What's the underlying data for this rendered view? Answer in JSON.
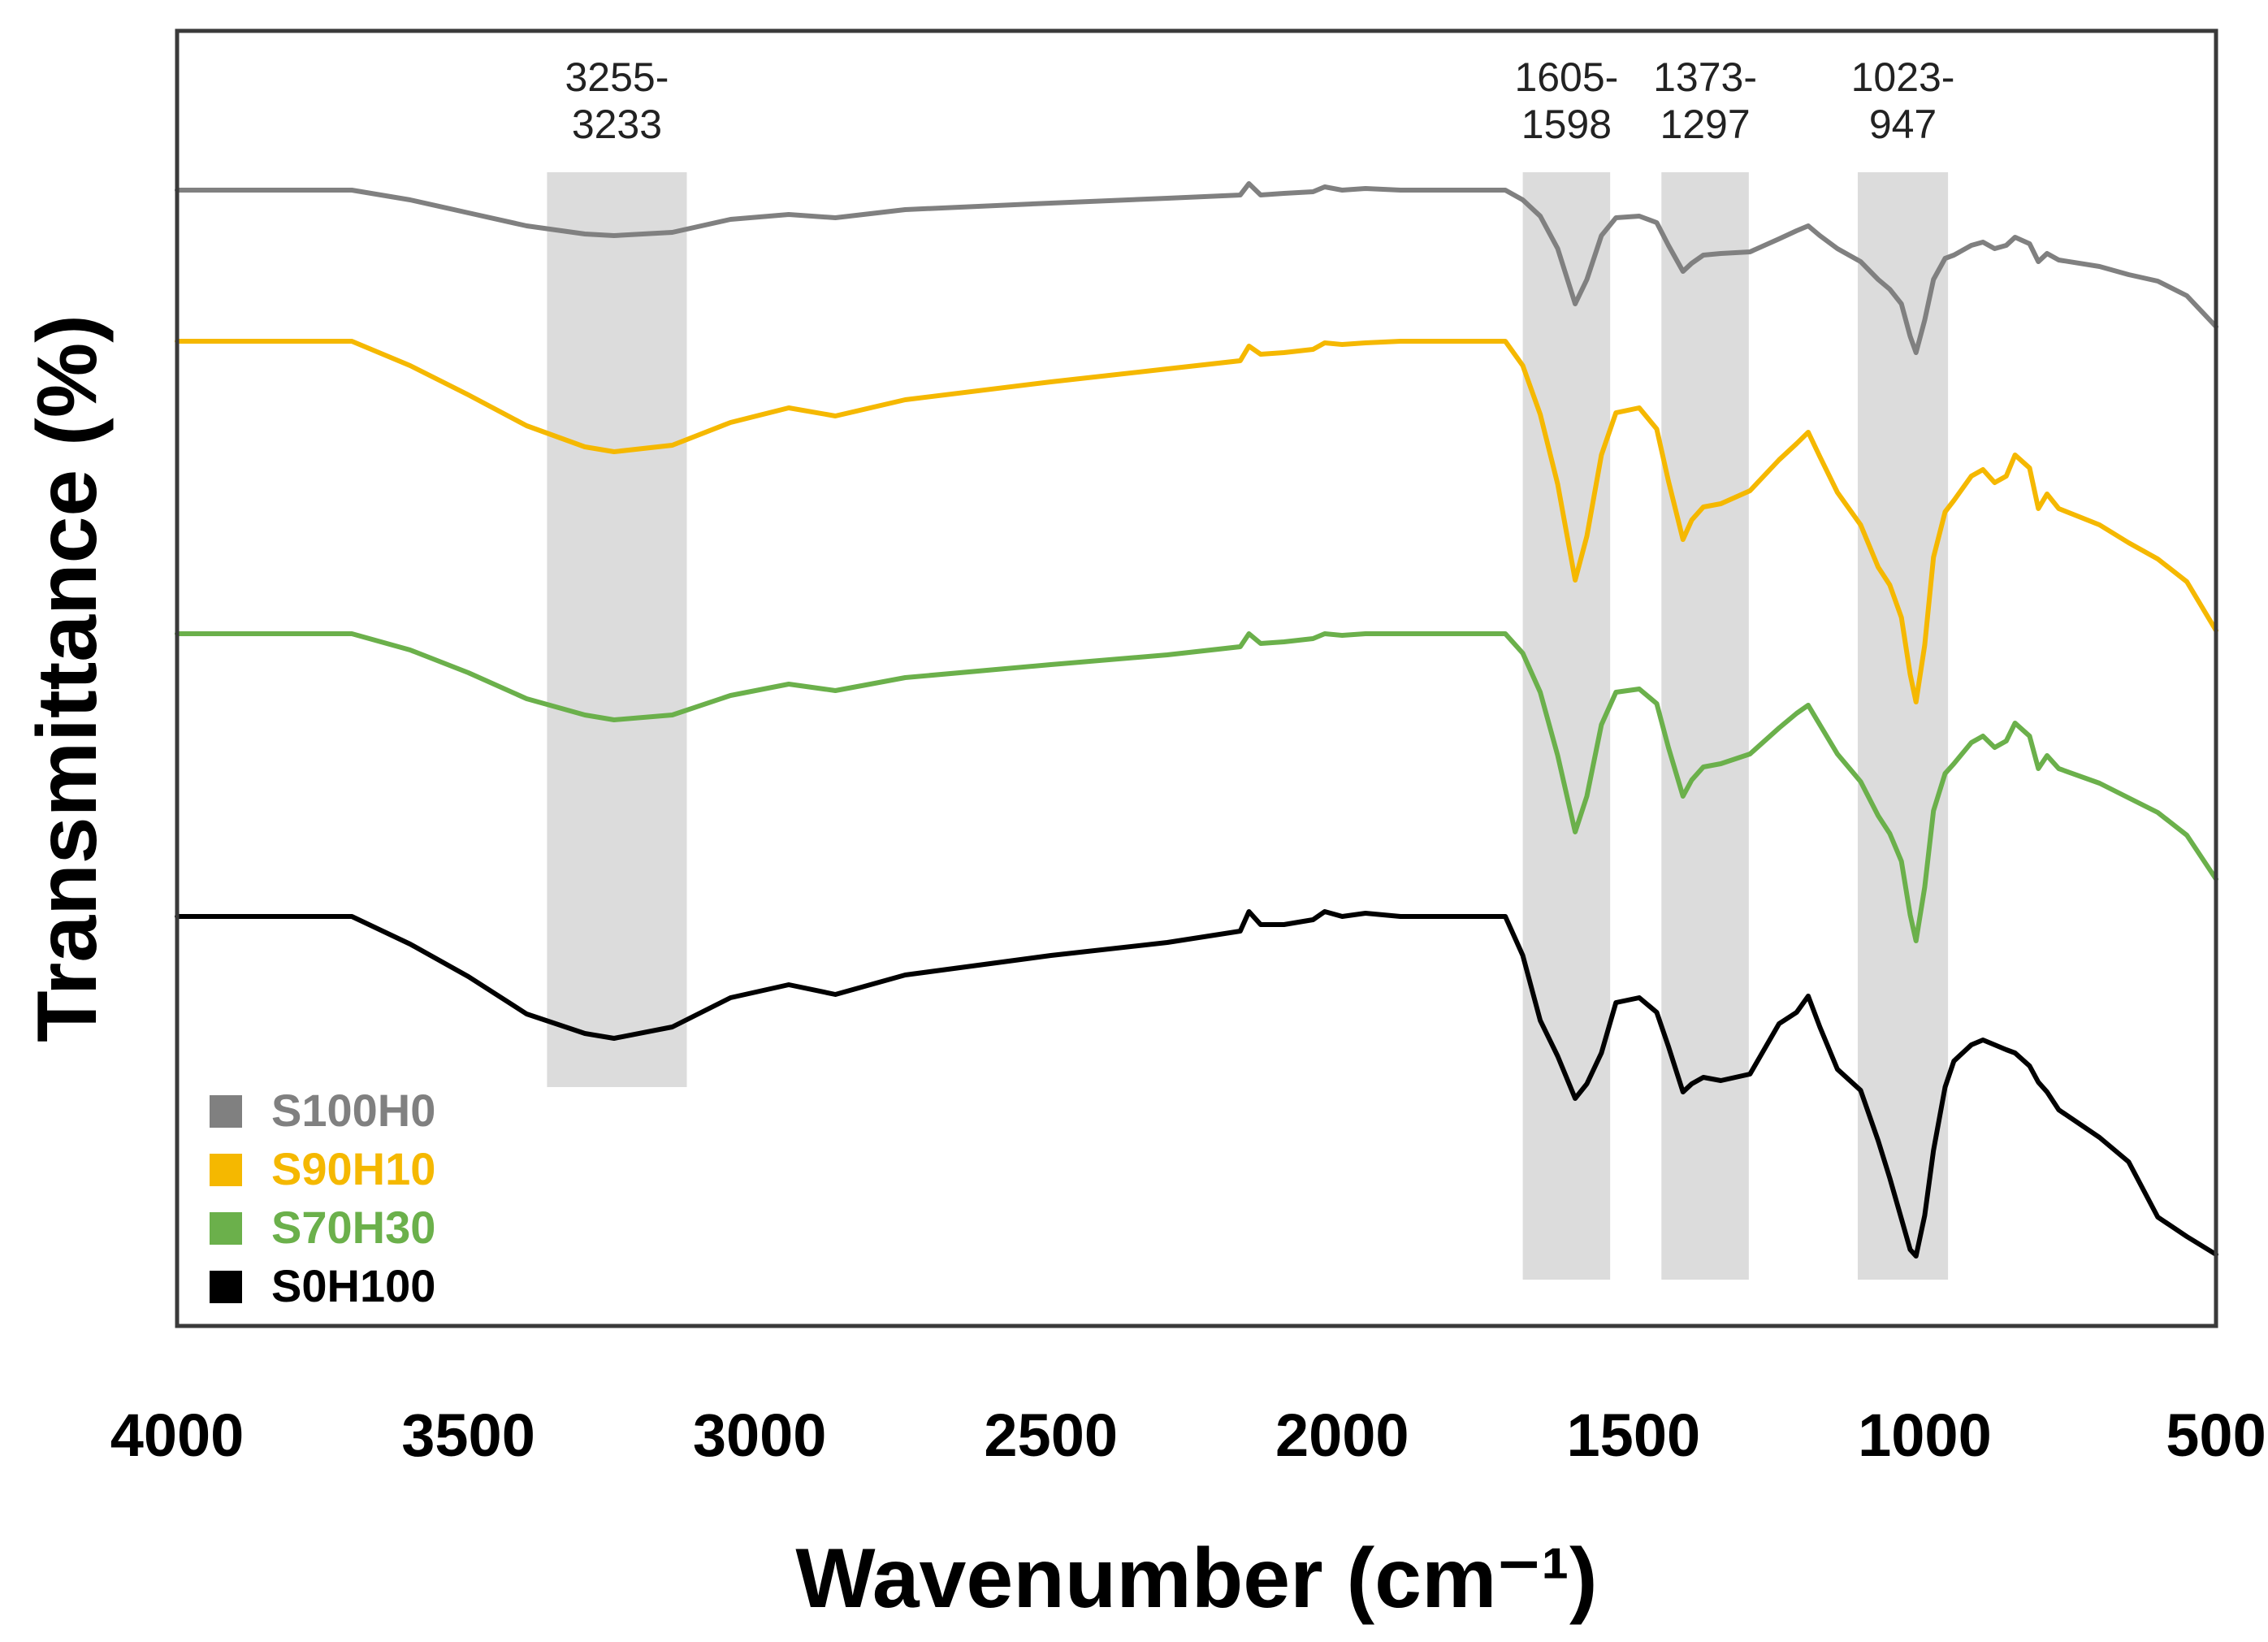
{
  "chart_data": {
    "type": "line",
    "xlabel": "Wavenumber (cm⁻¹)",
    "ylabel": "Transmittance (%)",
    "xlim": [
      4000,
      500
    ],
    "x_reversed": true,
    "x_ticks": [
      "4000",
      "3500",
      "3000",
      "2500",
      "2000",
      "1500",
      "1000",
      "500"
    ],
    "y_ticks_shown": false,
    "legend_position": "bottom-left",
    "bands": [
      {
        "from": 3365,
        "to": 3125,
        "label_lines": [
          "3255-",
          "3233"
        ]
      },
      {
        "from": 1690,
        "to": 1540,
        "label_lines": [
          "1605-",
          "1598"
        ]
      },
      {
        "from": 1452,
        "to": 1302,
        "label_lines": [
          "1373-",
          "1297"
        ]
      },
      {
        "from": 1115,
        "to": 960,
        "label_lines": [
          "1023-",
          "947"
        ]
      }
    ],
    "series": [
      {
        "name": "S100H0",
        "color": "#808080",
        "points": [
          [
            4000,
            0.0
          ],
          [
            3700,
            0.0
          ],
          [
            3600,
            -0.6
          ],
          [
            3500,
            -1.4
          ],
          [
            3400,
            -2.2
          ],
          [
            3300,
            -2.7
          ],
          [
            3250,
            -2.8
          ],
          [
            3150,
            -2.6
          ],
          [
            3050,
            -1.8
          ],
          [
            2950,
            -1.5
          ],
          [
            2870,
            -1.7
          ],
          [
            2750,
            -1.2
          ],
          [
            2500,
            -0.8
          ],
          [
            2300,
            -0.5
          ],
          [
            2175,
            -0.3
          ],
          [
            2160,
            0.4
          ],
          [
            2140,
            -0.3
          ],
          [
            2100,
            -0.2
          ],
          [
            2050,
            -0.1
          ],
          [
            2030,
            0.2
          ],
          [
            2000,
            0.0
          ],
          [
            1960,
            0.1
          ],
          [
            1900,
            0.0
          ],
          [
            1720,
            0.0
          ],
          [
            1690,
            -0.6
          ],
          [
            1660,
            -1.6
          ],
          [
            1630,
            -3.6
          ],
          [
            1600,
            -7.0
          ],
          [
            1580,
            -5.5
          ],
          [
            1555,
            -2.8
          ],
          [
            1530,
            -1.7
          ],
          [
            1490,
            -1.6
          ],
          [
            1460,
            -2.0
          ],
          [
            1440,
            -3.4
          ],
          [
            1415,
            -5.0
          ],
          [
            1400,
            -4.5
          ],
          [
            1380,
            -4.0
          ],
          [
            1350,
            -3.9
          ],
          [
            1300,
            -3.8
          ],
          [
            1250,
            -3.0
          ],
          [
            1220,
            -2.5
          ],
          [
            1200,
            -2.2
          ],
          [
            1180,
            -2.8
          ],
          [
            1150,
            -3.6
          ],
          [
            1110,
            -4.4
          ],
          [
            1080,
            -5.5
          ],
          [
            1060,
            -6.1
          ],
          [
            1040,
            -7.0
          ],
          [
            1025,
            -9.0
          ],
          [
            1015,
            -10.0
          ],
          [
            1000,
            -8.0
          ],
          [
            985,
            -5.5
          ],
          [
            965,
            -4.2
          ],
          [
            950,
            -4.0
          ],
          [
            920,
            -3.4
          ],
          [
            900,
            -3.2
          ],
          [
            880,
            -3.6
          ],
          [
            860,
            -3.4
          ],
          [
            845,
            -2.9
          ],
          [
            820,
            -3.3
          ],
          [
            805,
            -4.4
          ],
          [
            790,
            -3.9
          ],
          [
            770,
            -4.3
          ],
          [
            700,
            -4.7
          ],
          [
            650,
            -5.2
          ],
          [
            600,
            -5.6
          ],
          [
            550,
            -6.5
          ],
          [
            500,
            -8.4
          ]
        ]
      },
      {
        "name": "S90H10",
        "color": "#F5B800",
        "points": [
          [
            4000,
            0.0
          ],
          [
            3700,
            0.0
          ],
          [
            3600,
            -1.5
          ],
          [
            3500,
            -3.3
          ],
          [
            3400,
            -5.2
          ],
          [
            3300,
            -6.5
          ],
          [
            3250,
            -6.8
          ],
          [
            3150,
            -6.4
          ],
          [
            3050,
            -5.0
          ],
          [
            2950,
            -4.1
          ],
          [
            2870,
            -4.6
          ],
          [
            2750,
            -3.6
          ],
          [
            2500,
            -2.5
          ],
          [
            2300,
            -1.7
          ],
          [
            2175,
            -1.2
          ],
          [
            2160,
            -0.3
          ],
          [
            2140,
            -0.8
          ],
          [
            2100,
            -0.7
          ],
          [
            2050,
            -0.5
          ],
          [
            2030,
            -0.1
          ],
          [
            2000,
            -0.2
          ],
          [
            1960,
            -0.1
          ],
          [
            1900,
            0.0
          ],
          [
            1720,
            0.0
          ],
          [
            1690,
            -1.5
          ],
          [
            1660,
            -4.5
          ],
          [
            1630,
            -8.8
          ],
          [
            1600,
            -14.7
          ],
          [
            1580,
            -12.0
          ],
          [
            1555,
            -7.0
          ],
          [
            1530,
            -4.4
          ],
          [
            1490,
            -4.1
          ],
          [
            1460,
            -5.4
          ],
          [
            1440,
            -8.6
          ],
          [
            1415,
            -12.2
          ],
          [
            1400,
            -11.0
          ],
          [
            1380,
            -10.2
          ],
          [
            1350,
            -10.0
          ],
          [
            1300,
            -9.2
          ],
          [
            1250,
            -7.3
          ],
          [
            1220,
            -6.3
          ],
          [
            1200,
            -5.6
          ],
          [
            1180,
            -7.1
          ],
          [
            1150,
            -9.3
          ],
          [
            1110,
            -11.3
          ],
          [
            1080,
            -13.9
          ],
          [
            1060,
            -15.0
          ],
          [
            1040,
            -17.0
          ],
          [
            1025,
            -20.5
          ],
          [
            1015,
            -22.2
          ],
          [
            1000,
            -18.7
          ],
          [
            985,
            -13.3
          ],
          [
            965,
            -10.5
          ],
          [
            950,
            -9.8
          ],
          [
            920,
            -8.3
          ],
          [
            900,
            -7.9
          ],
          [
            880,
            -8.7
          ],
          [
            860,
            -8.3
          ],
          [
            845,
            -7.0
          ],
          [
            820,
            -7.8
          ],
          [
            805,
            -10.3
          ],
          [
            790,
            -9.4
          ],
          [
            770,
            -10.3
          ],
          [
            700,
            -11.3
          ],
          [
            650,
            -12.4
          ],
          [
            600,
            -13.4
          ],
          [
            550,
            -14.8
          ],
          [
            500,
            -17.8
          ]
        ]
      },
      {
        "name": "S70H30",
        "color": "#6BB04B",
        "points": [
          [
            4000,
            0.0
          ],
          [
            3700,
            0.0
          ],
          [
            3600,
            -1.0
          ],
          [
            3500,
            -2.4
          ],
          [
            3400,
            -4.0
          ],
          [
            3300,
            -5.0
          ],
          [
            3250,
            -5.3
          ],
          [
            3150,
            -5.0
          ],
          [
            3050,
            -3.8
          ],
          [
            2950,
            -3.1
          ],
          [
            2870,
            -3.5
          ],
          [
            2750,
            -2.7
          ],
          [
            2500,
            -1.9
          ],
          [
            2300,
            -1.3
          ],
          [
            2175,
            -0.8
          ],
          [
            2160,
            0.0
          ],
          [
            2140,
            -0.6
          ],
          [
            2100,
            -0.5
          ],
          [
            2050,
            -0.3
          ],
          [
            2030,
            0.0
          ],
          [
            2000,
            -0.1
          ],
          [
            1960,
            0.0
          ],
          [
            1900,
            0.0
          ],
          [
            1720,
            0.0
          ],
          [
            1690,
            -1.2
          ],
          [
            1660,
            -3.6
          ],
          [
            1630,
            -7.5
          ],
          [
            1600,
            -12.2
          ],
          [
            1580,
            -10.0
          ],
          [
            1555,
            -5.6
          ],
          [
            1530,
            -3.6
          ],
          [
            1490,
            -3.4
          ],
          [
            1460,
            -4.3
          ],
          [
            1440,
            -7.0
          ],
          [
            1415,
            -10.0
          ],
          [
            1400,
            -9.0
          ],
          [
            1380,
            -8.2
          ],
          [
            1350,
            -8.0
          ],
          [
            1300,
            -7.4
          ],
          [
            1250,
            -5.8
          ],
          [
            1220,
            -4.9
          ],
          [
            1200,
            -4.4
          ],
          [
            1180,
            -5.6
          ],
          [
            1150,
            -7.4
          ],
          [
            1110,
            -9.1
          ],
          [
            1080,
            -11.2
          ],
          [
            1060,
            -12.3
          ],
          [
            1040,
            -14.0
          ],
          [
            1025,
            -17.3
          ],
          [
            1015,
            -18.9
          ],
          [
            1000,
            -15.6
          ],
          [
            985,
            -10.9
          ],
          [
            965,
            -8.6
          ],
          [
            950,
            -8.0
          ],
          [
            920,
            -6.7
          ],
          [
            900,
            -6.3
          ],
          [
            880,
            -7.0
          ],
          [
            860,
            -6.6
          ],
          [
            845,
            -5.5
          ],
          [
            820,
            -6.3
          ],
          [
            805,
            -8.3
          ],
          [
            790,
            -7.5
          ],
          [
            770,
            -8.3
          ],
          [
            700,
            -9.2
          ],
          [
            650,
            -10.1
          ],
          [
            600,
            -11.0
          ],
          [
            550,
            -12.4
          ],
          [
            500,
            -15.1
          ]
        ]
      },
      {
        "name": "S0H100",
        "color": "#000000",
        "points": [
          [
            4000,
            0.0
          ],
          [
            3700,
            0.0
          ],
          [
            3600,
            -1.7
          ],
          [
            3500,
            -3.7
          ],
          [
            3400,
            -6.0
          ],
          [
            3300,
            -7.2
          ],
          [
            3250,
            -7.5
          ],
          [
            3150,
            -6.8
          ],
          [
            3050,
            -5.0
          ],
          [
            2950,
            -4.2
          ],
          [
            2870,
            -4.8
          ],
          [
            2750,
            -3.6
          ],
          [
            2500,
            -2.4
          ],
          [
            2300,
            -1.6
          ],
          [
            2175,
            -0.9
          ],
          [
            2160,
            0.3
          ],
          [
            2140,
            -0.5
          ],
          [
            2100,
            -0.5
          ],
          [
            2050,
            -0.2
          ],
          [
            2030,
            0.3
          ],
          [
            2000,
            0.0
          ],
          [
            1960,
            0.2
          ],
          [
            1900,
            0.0
          ],
          [
            1720,
            0.0
          ],
          [
            1690,
            -2.4
          ],
          [
            1660,
            -6.4
          ],
          [
            1630,
            -8.6
          ],
          [
            1600,
            -11.2
          ],
          [
            1580,
            -10.3
          ],
          [
            1555,
            -8.4
          ],
          [
            1530,
            -5.3
          ],
          [
            1490,
            -5.0
          ],
          [
            1460,
            -5.9
          ],
          [
            1440,
            -8.0
          ],
          [
            1415,
            -10.8
          ],
          [
            1400,
            -10.3
          ],
          [
            1380,
            -9.9
          ],
          [
            1350,
            -10.1
          ],
          [
            1300,
            -9.7
          ],
          [
            1250,
            -6.6
          ],
          [
            1220,
            -5.9
          ],
          [
            1200,
            -4.9
          ],
          [
            1180,
            -6.8
          ],
          [
            1150,
            -9.4
          ],
          [
            1110,
            -10.7
          ],
          [
            1080,
            -13.8
          ],
          [
            1060,
            -16.1
          ],
          [
            1040,
            -18.6
          ],
          [
            1025,
            -20.5
          ],
          [
            1015,
            -20.9
          ],
          [
            1000,
            -18.4
          ],
          [
            985,
            -14.4
          ],
          [
            965,
            -10.5
          ],
          [
            950,
            -8.9
          ],
          [
            920,
            -7.9
          ],
          [
            900,
            -7.6
          ],
          [
            880,
            -7.9
          ],
          [
            860,
            -8.2
          ],
          [
            845,
            -8.4
          ],
          [
            820,
            -9.2
          ],
          [
            805,
            -10.2
          ],
          [
            790,
            -10.8
          ],
          [
            770,
            -11.9
          ],
          [
            700,
            -13.6
          ],
          [
            650,
            -15.1
          ],
          [
            600,
            -18.5
          ],
          [
            550,
            -19.7
          ],
          [
            500,
            -20.8
          ]
        ]
      }
    ]
  }
}
